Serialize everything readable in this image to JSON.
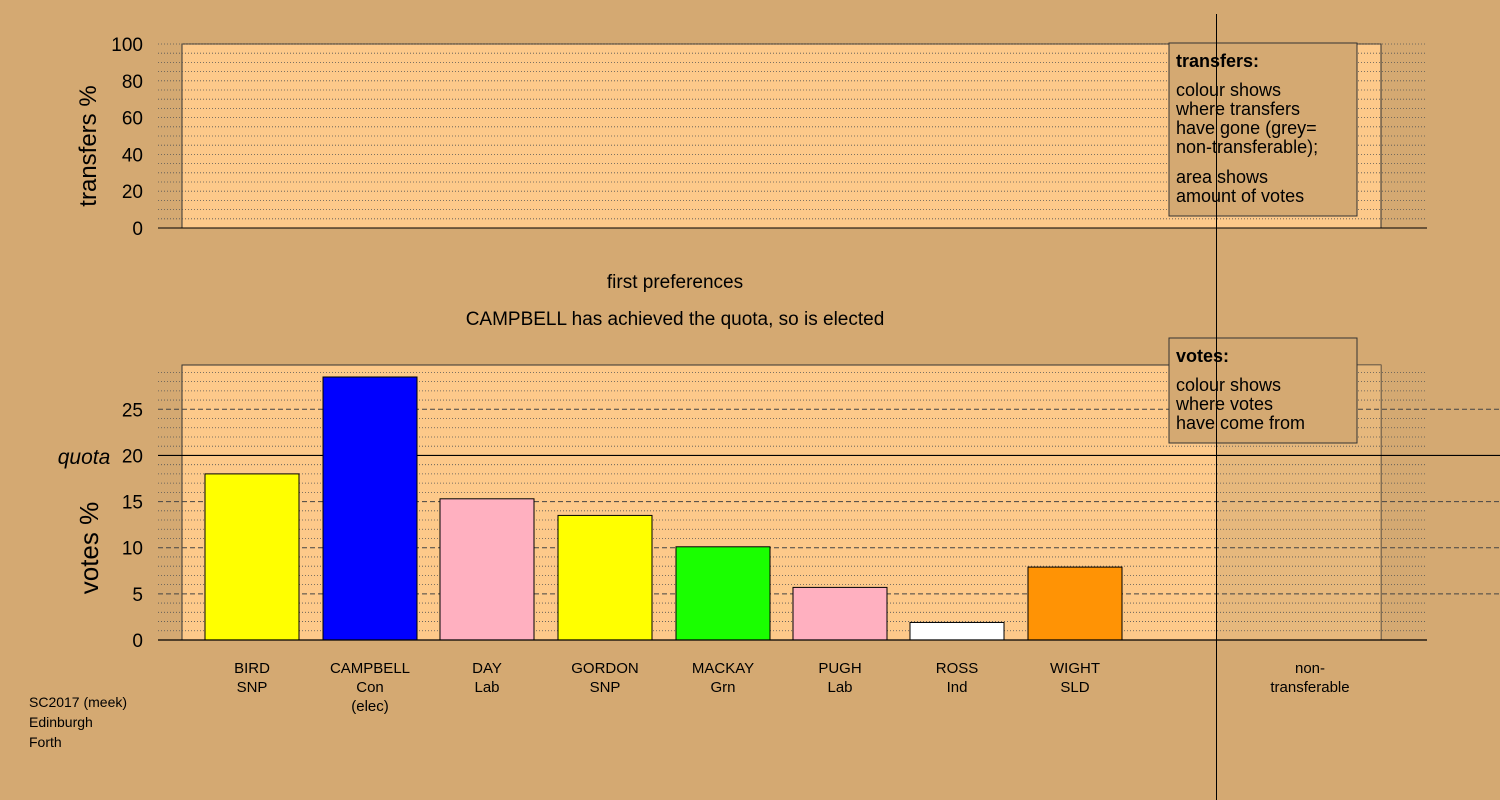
{
  "chart_data": [
    {
      "type": "bar",
      "name": "transfers",
      "ylabel": "transfers %",
      "ylim": [
        0,
        100
      ],
      "yticks": [
        0,
        20,
        40,
        60,
        80,
        100
      ],
      "grid": true,
      "series": [],
      "legend": {
        "position": "top-right",
        "title": "transfers:",
        "lines": [
          "colour shows",
          "where transfers",
          "have gone (grey=",
          "non-transferable);"
        ],
        "lines2": [
          "area shows",
          "amount of votes"
        ]
      }
    },
    {
      "type": "bar",
      "name": "votes",
      "title": "first preferences",
      "subtitle": "CAMPBELL has achieved the quota, so is elected",
      "ylabel": "votes %",
      "ylim": [
        0,
        30
      ],
      "yticks": [
        0,
        5,
        10,
        15,
        20,
        25
      ],
      "quota": 20,
      "quota_label": "quota",
      "grid": true,
      "categories": [
        {
          "name": "BIRD",
          "party": "SNP",
          "note": ""
        },
        {
          "name": "CAMPBELL",
          "party": "Con",
          "note": "(elec)"
        },
        {
          "name": "DAY",
          "party": "Lab",
          "note": ""
        },
        {
          "name": "GORDON",
          "party": "SNP",
          "note": ""
        },
        {
          "name": "MACKAY",
          "party": "Grn",
          "note": ""
        },
        {
          "name": "PUGH",
          "party": "Lab",
          "note": ""
        },
        {
          "name": "ROSS",
          "party": "Ind",
          "note": ""
        },
        {
          "name": "WIGHT",
          "party": "SLD",
          "note": ""
        }
      ],
      "values": [
        18,
        28.5,
        15.3,
        13.5,
        10.1,
        5.7,
        1.9,
        7.9
      ],
      "colors": [
        "#ffff00",
        "#0000ff",
        "#ffb0c0",
        "#ffff00",
        "#1aff00",
        "#ffb0c0",
        "#ffffff",
        "#ff9305"
      ],
      "nontransferable": {
        "label_line1": "non-",
        "label_line2": "transferable",
        "value": 0
      },
      "legend": {
        "position": "top-right",
        "title": "votes:",
        "lines": [
          "colour shows",
          "where votes",
          "have come from"
        ]
      }
    }
  ],
  "footer": [
    "SC2017 (meek)",
    "Edinburgh",
    "Forth"
  ],
  "colors": {
    "background": "#d4a972",
    "panel": "#fdc98a",
    "nontransferable_zone": "#d4a972"
  }
}
